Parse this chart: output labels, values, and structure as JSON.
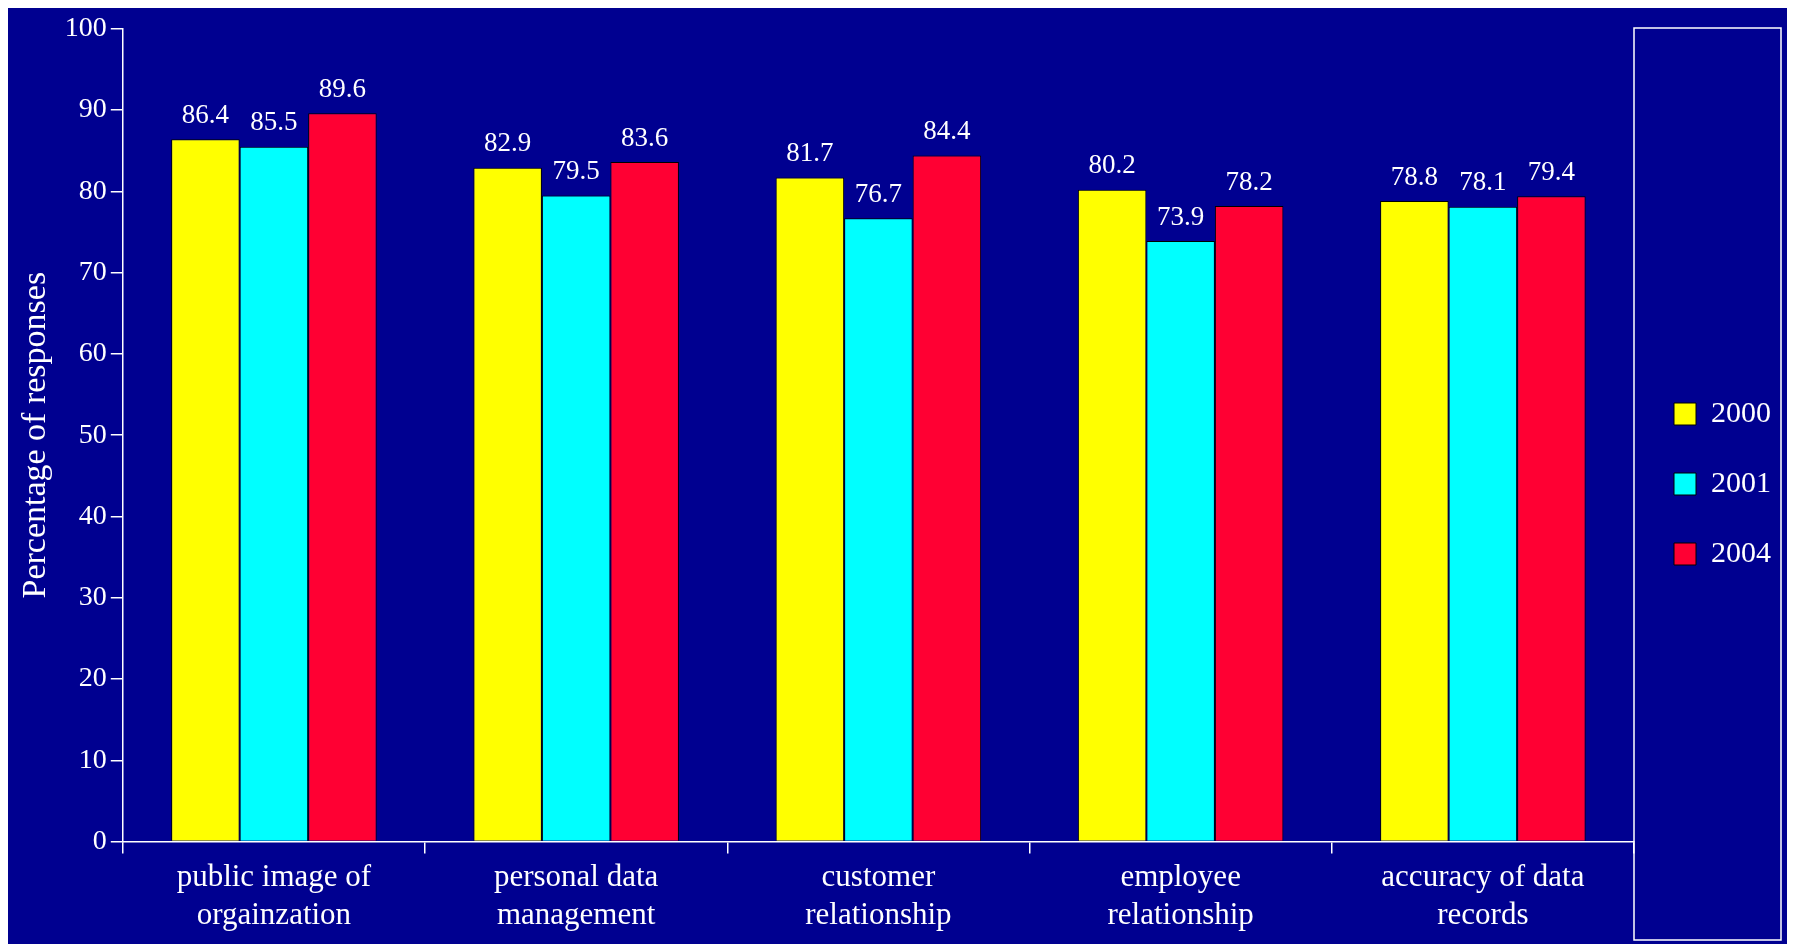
{
  "chart_data": {
    "type": "bar",
    "ylabel": "Percentage of responses",
    "categories": [
      "public image of orgainzation",
      "personal data management",
      "customer relationship",
      "employee relationship",
      "accuracy of data records"
    ],
    "series": [
      {
        "name": "2000",
        "color": "#ffff00",
        "values": [
          86.4,
          82.9,
          81.7,
          80.2,
          78.8
        ]
      },
      {
        "name": "2001",
        "color": "#00ffff",
        "values": [
          85.5,
          79.5,
          76.7,
          73.9,
          78.1
        ]
      },
      {
        "name": "2004",
        "color": "#ff0033",
        "values": [
          89.6,
          83.6,
          84.4,
          78.2,
          79.4
        ]
      }
    ],
    "ylim": [
      0,
      100
    ],
    "yticks": [
      0,
      10,
      20,
      30,
      40,
      50,
      60,
      70,
      80,
      90,
      100
    ],
    "grid": false,
    "legend": "right",
    "data_labels": true
  }
}
